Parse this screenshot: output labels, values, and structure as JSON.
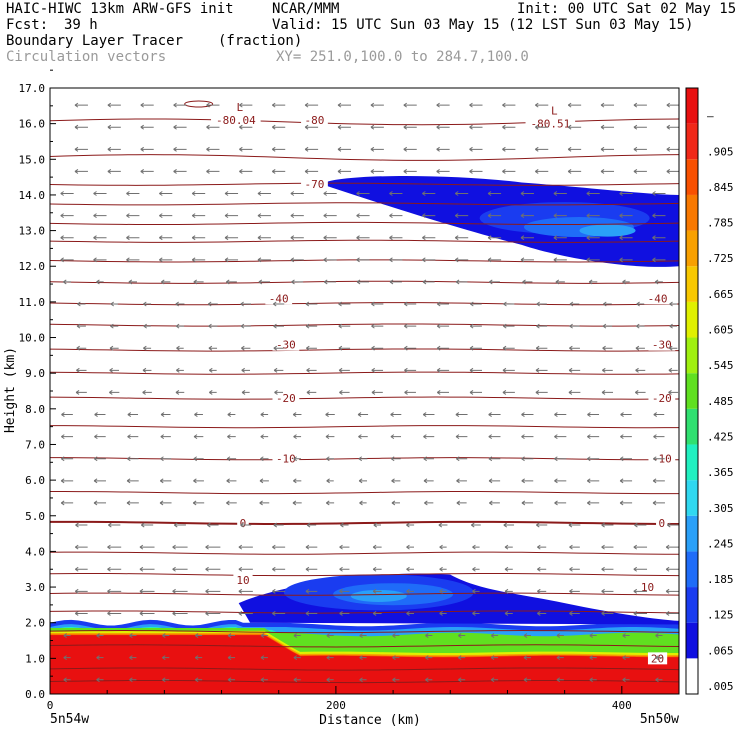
{
  "header": {
    "model": "HAIC-HIWC 13km ARW-GFS init",
    "org": "NCAR/MMM",
    "init": "Init: 00 UTC Sat 02 May 15",
    "fcst_label": "Fcst:",
    "fcst_value": "39 h",
    "valid": "Valid: 15 UTC Sun 03 May 15 (12 LST Sun 03 May 15)",
    "field": "Boundary Layer Tracer",
    "field_units": "(fraction)",
    "vectors": "Circulation vectors",
    "xy": "XY= 251.0,100.0 to 284.7,100.0"
  },
  "chart_data": {
    "type": "heatmap",
    "title": "Boundary Layer Tracer (fraction)",
    "xlabel": "Distance (km)",
    "ylabel": "Height (km)",
    "xlim": [
      0,
      440
    ],
    "ylim": [
      0,
      17
    ],
    "x_ticks": [
      0,
      200,
      400
    ],
    "y_ticks": [
      "0.0",
      "1.0",
      "2.0",
      "3.0",
      "4.0",
      "5.0",
      "6.0",
      "7.0",
      "8.0",
      "9.0",
      "10.0",
      "11.0",
      "12.0",
      "13.0",
      "14.0",
      "15.0",
      "16.0",
      "17.0"
    ],
    "x_endpoint_labels": [
      "5n54w",
      "5n50w"
    ],
    "colorbar": {
      "labels": [
        ".005",
        ".065",
        ".125",
        ".185",
        ".245",
        ".305",
        ".365",
        ".425",
        ".485",
        ".545",
        ".605",
        ".665",
        ".725",
        ".785",
        ".845",
        ".905",
        "–"
      ],
      "colors": [
        "#ffffff",
        "#1010e0",
        "#1a3cf0",
        "#1f6cf8",
        "#2aa0f8",
        "#30d8f0",
        "#20f0c0",
        "#30e070",
        "#60e020",
        "#a0f010",
        "#e0f000",
        "#f8c800",
        "#f8a000",
        "#f87800",
        "#f85000",
        "#f02818",
        "#e81010"
      ]
    },
    "temperature_contours": [
      {
        "label": "-80.04",
        "x": 130,
        "y": 16.1,
        "mark": "L"
      },
      {
        "label": "-80",
        "x": 185,
        "y": 16.1
      },
      {
        "label": "-80.51",
        "x": 350,
        "y": 16.0,
        "mark": "L"
      },
      {
        "label": "-70",
        "x": 185,
        "y": 14.3
      },
      {
        "label": "-40",
        "x": 160,
        "y": 11.1
      },
      {
        "label": "-40",
        "x": 425,
        "y": 11.1
      },
      {
        "label": "-30",
        "x": 165,
        "y": 9.8
      },
      {
        "label": "-30",
        "x": 428,
        "y": 9.8
      },
      {
        "label": "-20",
        "x": 165,
        "y": 8.3
      },
      {
        "label": "-20",
        "x": 428,
        "y": 8.3
      },
      {
        "label": "-10",
        "x": 165,
        "y": 6.6
      },
      {
        "label": "-10",
        "x": 428,
        "y": 6.6
      },
      {
        "label": "0",
        "x": 135,
        "y": 4.8
      },
      {
        "label": "0",
        "x": 428,
        "y": 4.8
      },
      {
        "label": "10",
        "x": 135,
        "y": 3.2
      },
      {
        "label": "10",
        "x": 418,
        "y": 3.0
      },
      {
        "label": "20",
        "x": 425,
        "y": 1.0
      }
    ],
    "contour_levels_km": [
      0.35,
      0.7,
      1.35,
      1.75,
      2.3,
      2.8,
      3.35,
      3.95,
      4.8,
      5.65,
      6.6,
      7.5,
      8.3,
      9.0,
      9.65,
      10.35,
      10.95,
      11.55,
      12.15,
      12.7,
      13.2,
      13.75,
      14.3,
      15.05,
      16.05
    ]
  }
}
